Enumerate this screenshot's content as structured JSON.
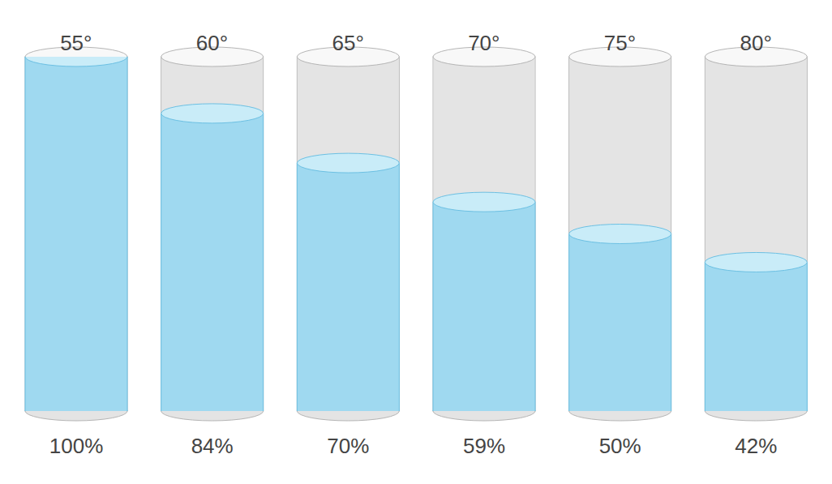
{
  "chart_data": {
    "type": "bar",
    "categories": [
      "55°",
      "60°",
      "65°",
      "70°",
      "75°",
      "80°"
    ],
    "values": [
      100,
      84,
      70,
      59,
      50,
      42
    ],
    "value_labels": [
      "100%",
      "84%",
      "70%",
      "59%",
      "50%",
      "42%"
    ],
    "color": "#9fd9f0",
    "ylim": [
      0,
      100
    ],
    "data_labels": true,
    "tick_labels": "x"
  }
}
